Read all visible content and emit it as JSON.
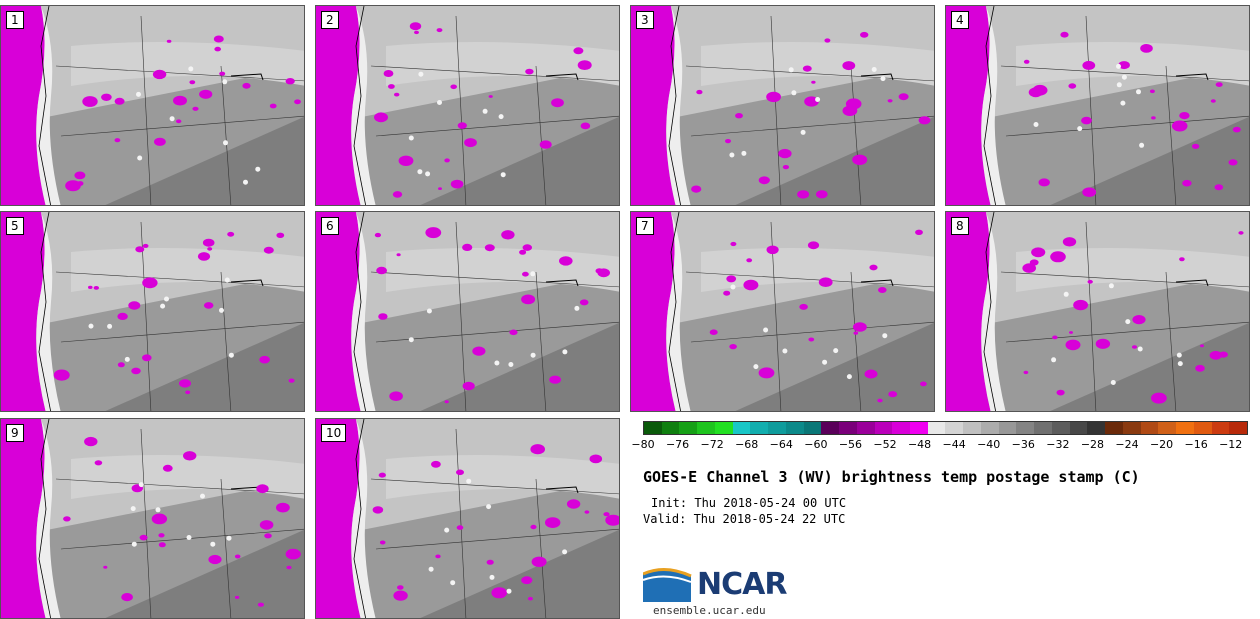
{
  "panels": [
    {
      "label": "1"
    },
    {
      "label": "2"
    },
    {
      "label": "3"
    },
    {
      "label": "4"
    },
    {
      "label": "5"
    },
    {
      "label": "6"
    },
    {
      "label": "7"
    },
    {
      "label": "8"
    },
    {
      "label": "9"
    },
    {
      "label": "10"
    }
  ],
  "colorbar": {
    "colors": [
      "#0a5a0a",
      "#0f7f0f",
      "#16a016",
      "#1ec41e",
      "#22e022",
      "#19c7c7",
      "#12aeae",
      "#0f9c9c",
      "#0c8a8a",
      "#0a7777",
      "#5a005a",
      "#7a007a",
      "#9a009a",
      "#ba00ba",
      "#d800d8",
      "#f000f0",
      "#e8e8e8",
      "#d4d4d4",
      "#c0c0c0",
      "#acacac",
      "#989898",
      "#848484",
      "#707070",
      "#5c5c5c",
      "#484848",
      "#343434",
      "#6b2a0a",
      "#8a3a10",
      "#b04a15",
      "#d06018",
      "#f07010",
      "#e05a10",
      "#cc3b10",
      "#b82a0a"
    ],
    "ticks": [
      "−80",
      "−76",
      "−72",
      "−68",
      "−64",
      "−60",
      "−56",
      "−52",
      "−48",
      "−44",
      "−40",
      "−36",
      "−32",
      "−28",
      "−24",
      "−20",
      "−16",
      "−12"
    ]
  },
  "title": "GOES-E Channel 3 (WV) brightness temp postage stamp (C)",
  "init": "Init: Thu 2018-05-24 00 UTC",
  "valid": "Valid: Thu 2018-05-24 22 UTC",
  "logo": {
    "text": "NCAR",
    "site": "ensemble.ucar.edu"
  }
}
